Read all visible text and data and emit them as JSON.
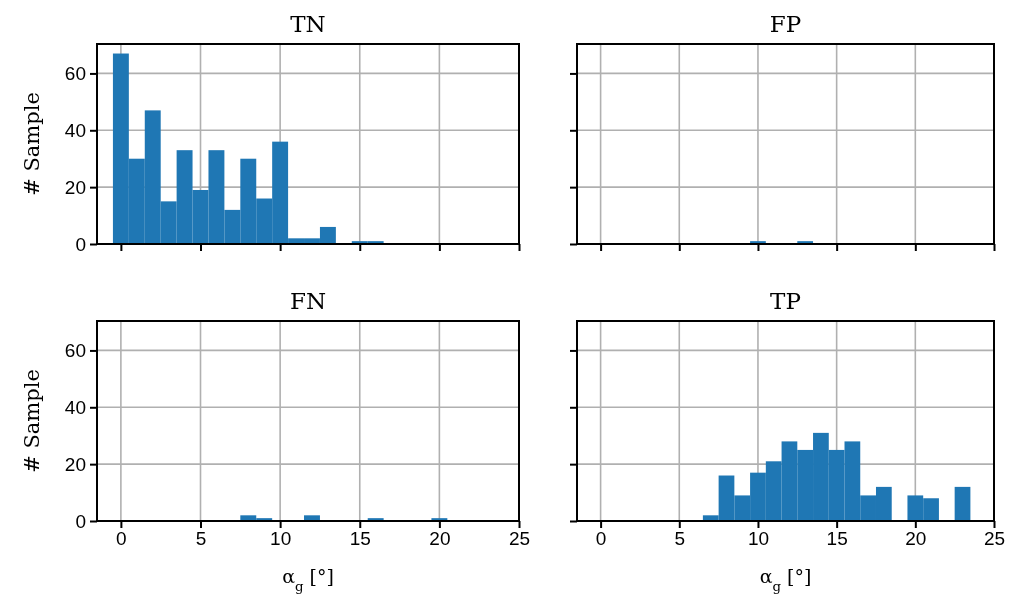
{
  "chart_data": [
    {
      "type": "histogram",
      "title": "TN",
      "ylabel": "# Sample",
      "bins": [
        -0.5,
        0.5,
        1.5,
        2.5,
        3.5,
        4.5,
        5.5,
        6.5,
        7.5,
        8.5,
        9.5,
        10.5,
        11.5,
        12.5,
        13.5,
        14.5,
        15.5,
        16.5,
        17.5,
        18.5,
        19.5,
        20.5,
        21.5,
        22.5,
        23.5
      ],
      "values": [
        67,
        30,
        47,
        15,
        33,
        19,
        33,
        12,
        30,
        16,
        36,
        2,
        2,
        6,
        0,
        1,
        1,
        0,
        0,
        0,
        0,
        0,
        0,
        0
      ],
      "color": "#1f77b4",
      "xlim": [
        -1.5,
        25
      ],
      "xticks": [
        0,
        5,
        10,
        15,
        20,
        25
      ],
      "ylim": [
        0,
        70.35
      ],
      "yticks": [
        0,
        20,
        40,
        60
      ],
      "grid": true,
      "tick_labels": "y"
    },
    {
      "type": "histogram",
      "title": "FP",
      "bins": [
        -0.5,
        0.5,
        1.5,
        2.5,
        3.5,
        4.5,
        5.5,
        6.5,
        7.5,
        8.5,
        9.5,
        10.5,
        11.5,
        12.5,
        13.5,
        14.5,
        15.5,
        16.5,
        17.5,
        18.5,
        19.5,
        20.5,
        21.5,
        22.5,
        23.5
      ],
      "values": [
        0,
        0,
        0,
        0,
        0,
        0,
        0,
        0,
        0,
        0,
        1,
        0,
        0,
        1,
        0,
        0,
        0,
        0,
        0,
        0,
        0,
        0,
        0,
        0
      ],
      "color": "#1f77b4",
      "xlim": [
        -1.5,
        25
      ],
      "xticks": [
        0,
        5,
        10,
        15,
        20,
        25
      ],
      "ylim": [
        0,
        70.35
      ],
      "yticks": [
        0,
        20,
        40,
        60
      ],
      "grid": true,
      "tick_labels": false
    },
    {
      "type": "histogram",
      "title": "FN",
      "xlabel": "α$_{g}$ [°]",
      "ylabel": "# Sample",
      "bins": [
        -0.5,
        0.5,
        1.5,
        2.5,
        3.5,
        4.5,
        5.5,
        6.5,
        7.5,
        8.5,
        9.5,
        10.5,
        11.5,
        12.5,
        13.5,
        14.5,
        15.5,
        16.5,
        17.5,
        18.5,
        19.5,
        20.5,
        21.5,
        22.5,
        23.5
      ],
      "values": [
        0,
        0,
        0,
        0,
        0,
        0,
        0,
        0,
        2,
        1,
        0,
        0,
        2,
        0,
        0,
        0,
        1,
        0,
        0,
        0,
        1,
        0,
        0,
        0
      ],
      "color": "#1f77b4",
      "xlim": [
        -1.5,
        25
      ],
      "xticks": [
        0,
        5,
        10,
        15,
        20,
        25
      ],
      "ylim": [
        0,
        70.35
      ],
      "yticks": [
        0,
        20,
        40,
        60
      ],
      "grid": true
    },
    {
      "type": "histogram",
      "title": "TP",
      "xlabel": "α$_{g}$ [°]",
      "bins": [
        -0.5,
        0.5,
        1.5,
        2.5,
        3.5,
        4.5,
        5.5,
        6.5,
        7.5,
        8.5,
        9.5,
        10.5,
        11.5,
        12.5,
        13.5,
        14.5,
        15.5,
        16.5,
        17.5,
        18.5,
        19.5,
        20.5,
        21.5,
        22.5,
        23.5
      ],
      "values": [
        0,
        0,
        0,
        0,
        0,
        0,
        0,
        2,
        16,
        9,
        17,
        21,
        28,
        25,
        31,
        25,
        28,
        9,
        12,
        0,
        9,
        8,
        0,
        12
      ],
      "color": "#1f77b4",
      "xlim": [
        -1.5,
        25
      ],
      "xticks": [
        0,
        5,
        10,
        15,
        20,
        25
      ],
      "ylim": [
        0,
        70.35
      ],
      "yticks": [
        0,
        20,
        40,
        60
      ],
      "grid": true,
      "tick_labels": "x"
    }
  ]
}
